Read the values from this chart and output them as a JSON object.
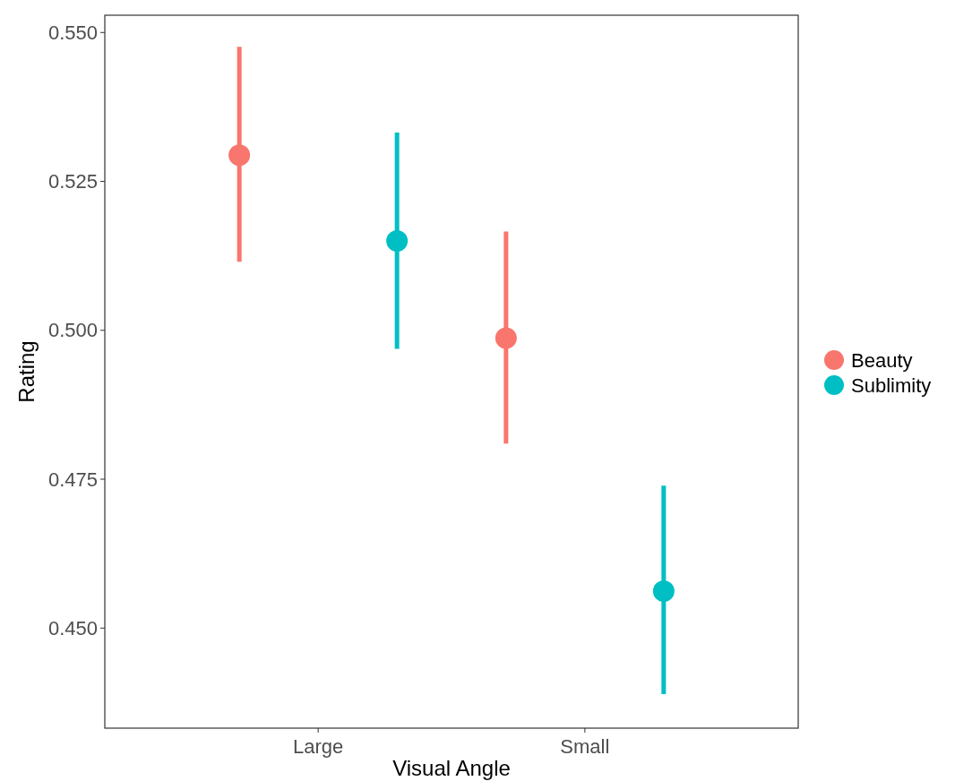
{
  "chart_data": {
    "type": "scatter",
    "xlabel": "Visual Angle",
    "ylabel": "Rating",
    "categories": [
      "Large",
      "Small"
    ],
    "series": [
      {
        "name": "Beauty",
        "color": "#f8766d",
        "values": [
          0.5294,
          0.4987
        ],
        "errors": [
          [
            0.5115,
            0.5476
          ],
          [
            0.481,
            0.5166
          ]
        ]
      },
      {
        "name": "Sublimity",
        "color": "#00bfc4",
        "values": [
          0.515,
          0.4562
        ],
        "errors": [
          [
            0.4969,
            0.5332
          ],
          [
            0.4389,
            0.4739
          ]
        ]
      }
    ],
    "ylim": [
      0.4332,
      0.5529
    ],
    "yticks": [
      {
        "value": 0.45,
        "label": "0.450"
      },
      {
        "value": 0.475,
        "label": "0.475"
      },
      {
        "value": 0.5,
        "label": "0.500"
      },
      {
        "value": 0.525,
        "label": "0.525"
      },
      {
        "value": 0.55,
        "label": "0.550"
      }
    ],
    "marker": "circle",
    "legend": "right",
    "grid": false
  }
}
